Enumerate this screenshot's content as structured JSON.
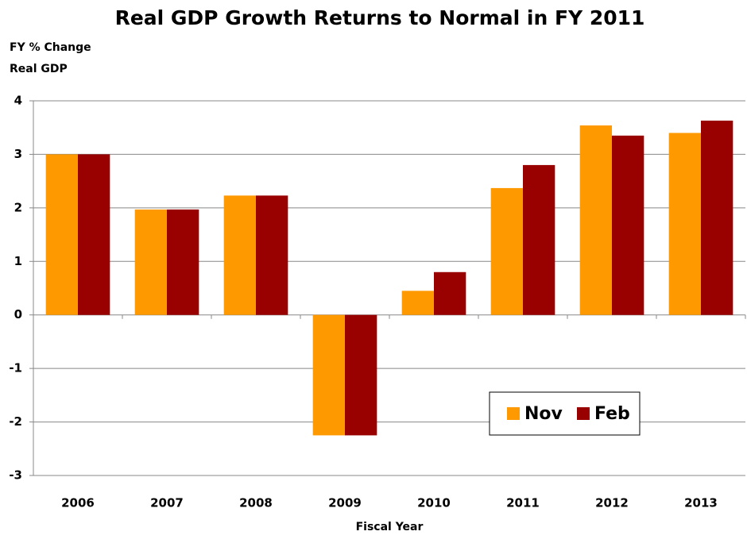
{
  "chart_data": {
    "type": "bar",
    "title": "Real GDP Growth Returns to Normal in FY 2011",
    "y_label": [
      "FY % Change",
      "Real GDP"
    ],
    "x_label": "Fiscal Year",
    "categories": [
      "2006",
      "2007",
      "2008",
      "2009",
      "2010",
      "2011",
      "2012",
      "2013"
    ],
    "series": [
      {
        "name": "Nov",
        "color": "#ff9900",
        "values": [
          3.0,
          1.97,
          2.23,
          -2.25,
          0.45,
          2.37,
          3.54,
          3.4
        ]
      },
      {
        "name": "Feb",
        "color": "#990000",
        "values": [
          3.0,
          1.97,
          2.23,
          -2.25,
          0.8,
          2.8,
          3.35,
          3.63
        ]
      }
    ],
    "ylim": [
      -3,
      4
    ],
    "yticks": [
      -3,
      -2,
      -1,
      0,
      1,
      2,
      3,
      4
    ],
    "grid": true,
    "legend": "lower right"
  }
}
